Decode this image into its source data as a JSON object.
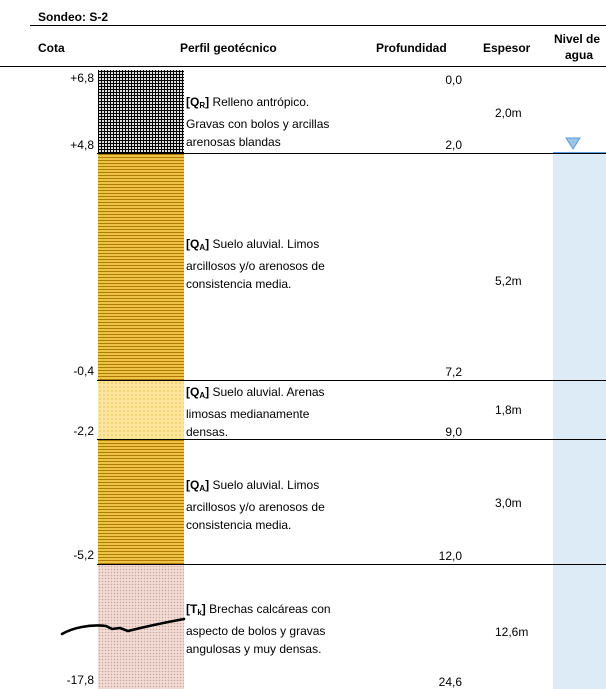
{
  "title": "Sondeo:  S-2",
  "headers": {
    "cota": "Cota",
    "perfil": "Perfil geotécnico",
    "profundidad": "Profundidad",
    "espesor": "Espesor",
    "nivel_line1": "Nivel de",
    "nivel_line2": "agua"
  },
  "cotas": [
    "+6,8",
    "+4,8",
    "-0,4",
    "-2,2",
    "-5,2",
    "-17,8"
  ],
  "depths": [
    "0,0",
    "2,0",
    "7,2",
    "9,0",
    "12,0",
    "24,6"
  ],
  "layers": [
    {
      "code": "Q",
      "sub": "R",
      "lines": [
        "Relleno antrópico.",
        "Gravas con bolos y arcillas",
        "arenosas blandas"
      ],
      "thickness": "2,0m",
      "pattern": "fill"
    },
    {
      "code": "Q",
      "sub": "A",
      "lines": [
        "Suelo aluvial. Limos",
        "arcillosos y/o arenosos de",
        "consistencia media."
      ],
      "thickness": "5,2m",
      "pattern": "silt"
    },
    {
      "code": "Q",
      "sub": "A",
      "lines": [
        "Suelo aluvial. Arenas",
        "limosas medianamente",
        "densas."
      ],
      "thickness": "1,8m",
      "pattern": "sand"
    },
    {
      "code": "Q",
      "sub": "A",
      "lines": [
        "Suelo aluvial. Limos",
        "arcillosos y/o arenosos de",
        "consistencia media."
      ],
      "thickness": "3,0m",
      "pattern": "silt"
    },
    {
      "code": "T",
      "sub": "k",
      "lines": [
        "Brechas calcáreas con",
        "aspecto de bolos y gravas",
        "angulosas y muy densas."
      ],
      "thickness": "12,6m",
      "pattern": "rock"
    }
  ],
  "water_level_depth": "2,0",
  "colors": {
    "water": "#ddebf7",
    "water_line": "#5b9bd5",
    "triangle": "#9dc3e6"
  }
}
